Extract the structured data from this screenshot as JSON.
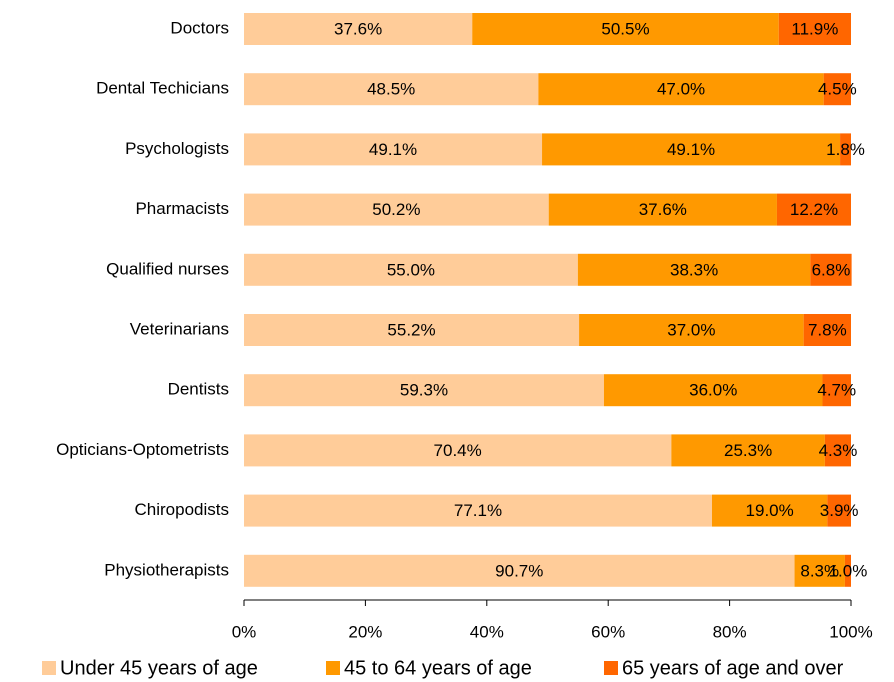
{
  "chart_data": {
    "type": "stacked_barh",
    "categories": [
      "Doctors",
      "Dental Techicians",
      "Psychologists",
      "Pharmacists",
      "Qualified nurses",
      "Veterinarians",
      "Dentists",
      "Opticians-Optometrists",
      "Chiropodists",
      "Physiotherapists"
    ],
    "series": [
      {
        "name": "Under 45 years of age",
        "color": "#FFCC99",
        "values": [
          37.6,
          48.5,
          49.1,
          50.2,
          55.0,
          55.2,
          59.3,
          70.4,
          77.1,
          90.7
        ],
        "value_labels": [
          "37.6%",
          "48.5%",
          "49.1%",
          "50.2%",
          "55.0%",
          "55.2%",
          "59.3%",
          "70.4%",
          "77.1%",
          "90.7%"
        ]
      },
      {
        "name": "45 to 64 years of age",
        "color": "#FF9900",
        "values": [
          50.5,
          47.0,
          49.1,
          37.6,
          38.3,
          37.0,
          36.0,
          25.3,
          19.0,
          8.3
        ],
        "value_labels": [
          "50.5%",
          "47.0%",
          "49.1%",
          "37.6%",
          "38.3%",
          "37.0%",
          "36.0%",
          "25.3%",
          "19.0%",
          "8.3%"
        ]
      },
      {
        "name": "65 years of age and over",
        "color": "#FF6600",
        "values": [
          11.9,
          4.5,
          1.8,
          12.2,
          6.8,
          7.8,
          4.7,
          4.3,
          3.9,
          1.0
        ],
        "value_labels": [
          "11.9%",
          "4.5%",
          "1.8%",
          "12.2%",
          "6.8%",
          "7.8%",
          "4.7%",
          "4.3%",
          "3.9%",
          "1.0%"
        ]
      }
    ],
    "xlim": [
      0,
      100
    ],
    "xticks": [
      {
        "value": 0,
        "label": "0%"
      },
      {
        "value": 20,
        "label": "20%"
      },
      {
        "value": 40,
        "label": "40%"
      },
      {
        "value": 60,
        "label": "60%"
      },
      {
        "value": 80,
        "label": "80%"
      },
      {
        "value": 100,
        "label": "100%"
      }
    ],
    "legend": "bottom"
  }
}
